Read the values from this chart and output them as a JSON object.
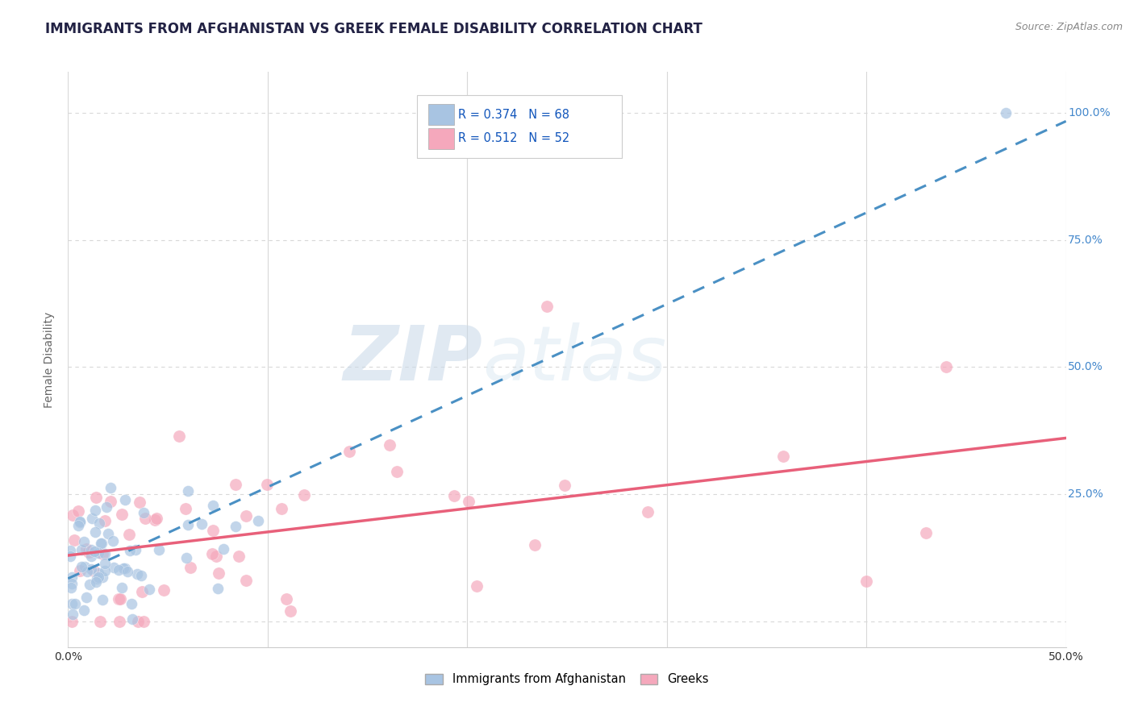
{
  "title": "IMMIGRANTS FROM AFGHANISTAN VS GREEK FEMALE DISABILITY CORRELATION CHART",
  "source": "Source: ZipAtlas.com",
  "ylabel": "Female Disability",
  "r1": 0.374,
  "n1": 68,
  "r2": 0.512,
  "n2": 52,
  "color1": "#a8c4e2",
  "color2": "#f5a8bc",
  "line_color1": "#4a90c4",
  "line_color2": "#e8607a",
  "legend_label1": "Immigrants from Afghanistan",
  "legend_label2": "Greeks",
  "background_color": "#ffffff",
  "grid_color": "#d8d8d8",
  "watermark_zip": "ZIP",
  "watermark_atlas": "atlas",
  "title_color": "#222244",
  "axis_label_color": "#666666",
  "tick_label_color": "#4488cc",
  "xlim": [
    0.0,
    0.5
  ],
  "ylim": [
    -0.05,
    1.08
  ]
}
